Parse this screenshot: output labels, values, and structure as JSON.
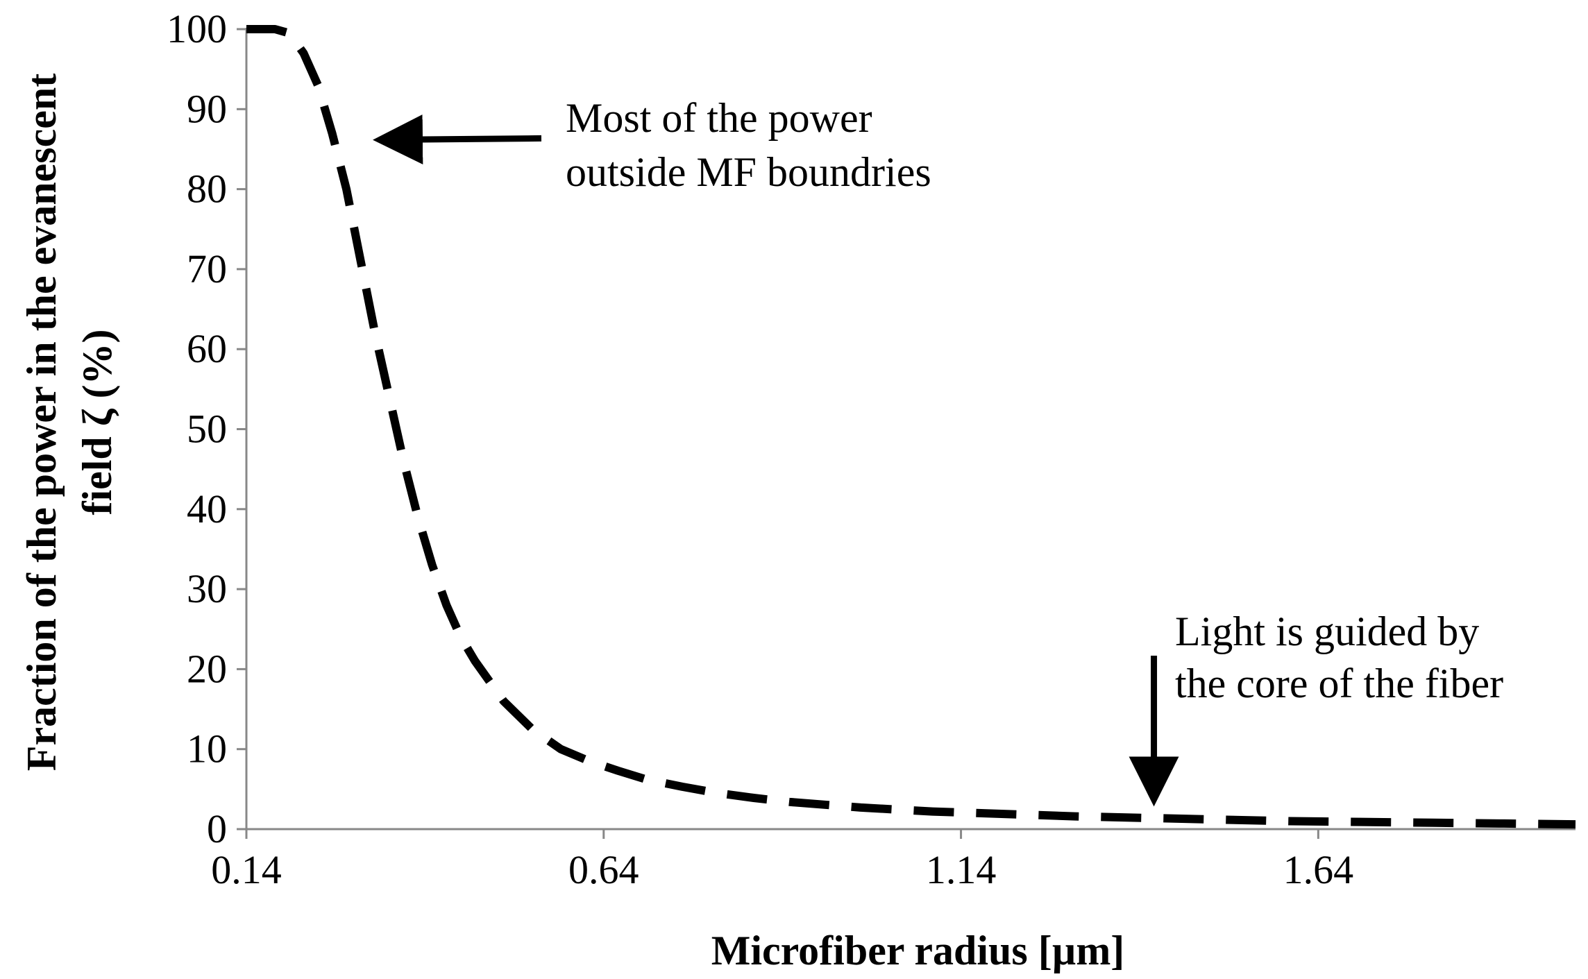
{
  "chart_data": {
    "type": "line",
    "title": "",
    "xlabel": "Microfiber radius [µm]",
    "ylabel_line1": "Fraction of the power in the evanescent",
    "ylabel_line2": "field ζ (%)",
    "xlim": [
      0.14,
      2.0
    ],
    "ylim": [
      0,
      100
    ],
    "x_ticks": [
      0.14,
      0.64,
      1.14,
      1.64
    ],
    "x_tick_labels": [
      "0.14",
      "0.64",
      "1.14",
      "1.64"
    ],
    "y_ticks": [
      0,
      10,
      20,
      30,
      40,
      50,
      60,
      70,
      80,
      90,
      100
    ],
    "y_tick_labels": [
      "0",
      "10",
      "20",
      "30",
      "40",
      "50",
      "60",
      "70",
      "80",
      "90",
      "100"
    ],
    "grid": false,
    "series": [
      {
        "name": "Fraction of power in evanescent field",
        "line_style": "dashed",
        "color": "#000000",
        "x": [
          0.14,
          0.18,
          0.2,
          0.22,
          0.24,
          0.26,
          0.28,
          0.3,
          0.32,
          0.34,
          0.36,
          0.38,
          0.4,
          0.42,
          0.44,
          0.46,
          0.48,
          0.5,
          0.54,
          0.58,
          0.62,
          0.66,
          0.7,
          0.75,
          0.8,
          0.85,
          0.9,
          1.0,
          1.1,
          1.2,
          1.3,
          1.4,
          1.5,
          1.6,
          1.7,
          1.8,
          1.9,
          2.0
        ],
        "y": [
          100,
          100,
          99.5,
          97,
          93,
          87,
          80,
          71,
          62,
          54,
          46,
          39,
          33,
          28,
          24,
          21,
          18.5,
          16,
          12.5,
          10,
          8.5,
          7.3,
          6.2,
          5.3,
          4.5,
          3.9,
          3.4,
          2.7,
          2.2,
          1.9,
          1.6,
          1.4,
          1.2,
          1.0,
          0.9,
          0.8,
          0.7,
          0.6
        ]
      }
    ],
    "annotations": [
      {
        "text_line1": "Most of the power",
        "text_line2": "outside MF boundries",
        "arrow_target": [
          0.31,
          86
        ]
      },
      {
        "text_line1": "Light is guided by",
        "text_line2": "the core of the fiber",
        "arrow_target": [
          1.41,
          1.7
        ]
      }
    ]
  }
}
